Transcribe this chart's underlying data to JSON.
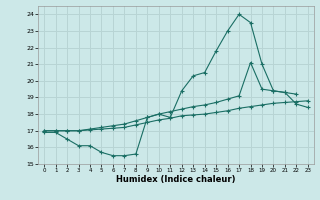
{
  "background_color": "#cce8e8",
  "grid_color": "#b8d4d4",
  "line_color": "#1a6e64",
  "xlabel": "Humidex (Indice chaleur)",
  "ylim": [
    15,
    24.5
  ],
  "xlim": [
    -0.5,
    23.5
  ],
  "yticks": [
    15,
    16,
    17,
    18,
    19,
    20,
    21,
    22,
    23,
    24
  ],
  "xticks": [
    0,
    1,
    2,
    3,
    4,
    5,
    6,
    7,
    8,
    9,
    10,
    11,
    12,
    13,
    14,
    15,
    16,
    17,
    18,
    19,
    20,
    21,
    22,
    23
  ],
  "line1_x": [
    0,
    1,
    2,
    3,
    4,
    5,
    6,
    7,
    8,
    9,
    10,
    11,
    12,
    13,
    14,
    15,
    16,
    17,
    18,
    19,
    20,
    21,
    22
  ],
  "line1_y": [
    16.9,
    16.9,
    16.5,
    16.1,
    16.1,
    15.7,
    15.5,
    15.5,
    15.6,
    17.8,
    18.0,
    17.8,
    19.4,
    20.3,
    20.5,
    21.8,
    23.0,
    24.0,
    23.5,
    21.0,
    19.4,
    19.3,
    19.2
  ],
  "line2_x": [
    0,
    1,
    2,
    3,
    4,
    5,
    6,
    7,
    8,
    9,
    10,
    11,
    12,
    13,
    14,
    15,
    16,
    17,
    18,
    19,
    20,
    21,
    22,
    23
  ],
  "line2_y": [
    17.0,
    17.0,
    17.0,
    17.0,
    17.1,
    17.2,
    17.3,
    17.4,
    17.6,
    17.8,
    18.0,
    18.15,
    18.3,
    18.45,
    18.55,
    18.7,
    18.9,
    19.1,
    21.1,
    19.5,
    19.4,
    19.3,
    18.6,
    18.4
  ],
  "line3_x": [
    0,
    1,
    2,
    3,
    4,
    5,
    6,
    7,
    8,
    9,
    10,
    11,
    12,
    13,
    14,
    15,
    16,
    17,
    18,
    19,
    20,
    21,
    22,
    23
  ],
  "line3_y": [
    17.0,
    17.0,
    17.0,
    17.0,
    17.05,
    17.1,
    17.15,
    17.2,
    17.35,
    17.5,
    17.65,
    17.75,
    17.9,
    17.95,
    18.0,
    18.1,
    18.2,
    18.35,
    18.45,
    18.55,
    18.65,
    18.7,
    18.75,
    18.8
  ]
}
